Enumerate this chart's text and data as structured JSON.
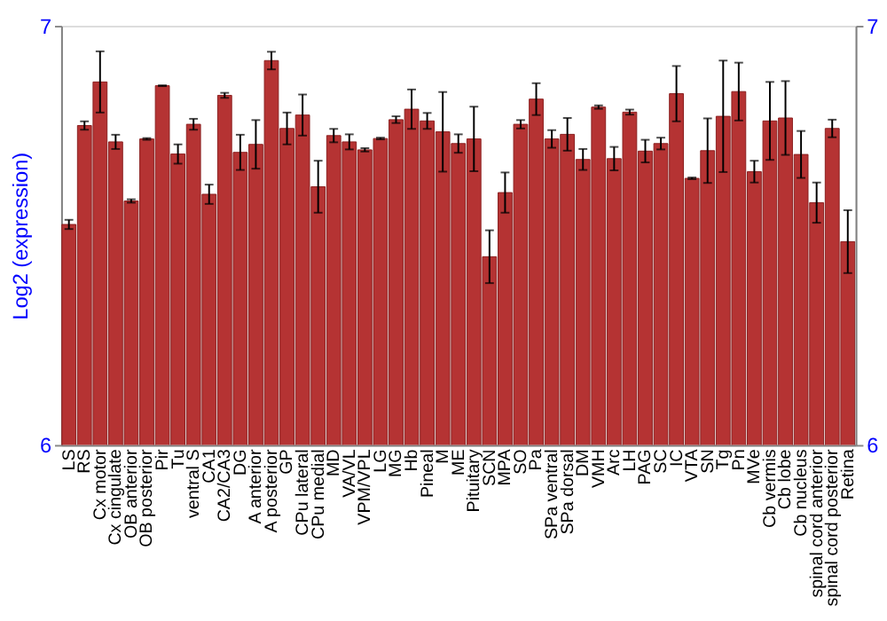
{
  "chart_data": {
    "type": "bar",
    "ylabel": "Log2 (expression)",
    "categories": [
      "LS",
      "RS",
      "Cx motor",
      "Cx cingulate",
      "OB anterior",
      "OB posterior",
      "Pir",
      "Tu",
      "ventral S",
      "CA1",
      "CA2/CA3",
      "DG",
      "A anterior",
      "A posterior",
      "GP",
      "CPu lateral",
      "CPu medial",
      "MD",
      "VA/VL",
      "VPM/VPL",
      "LG",
      "MG",
      "Hb",
      "Pineal",
      "M",
      "ME",
      "Pituitary",
      "SCN",
      "MPA",
      "SO",
      "Pa",
      "SPa ventral",
      "SPa dorsal",
      "DM",
      "VMH",
      "Arc",
      "LH",
      "PAG",
      "SC",
      "IC",
      "VTA",
      "SN",
      "Tg",
      "Pn",
      "MVe",
      "Cb vermis",
      "Cb lobe",
      "Cb nucleus",
      "spinal cord anterior",
      "spinal cord posterior",
      "Retina"
    ],
    "values": [
      6.526,
      6.762,
      6.866,
      6.723,
      6.582,
      6.73,
      6.857,
      6.694,
      6.765,
      6.598,
      6.834,
      6.698,
      6.717,
      6.917,
      6.755,
      6.787,
      6.616,
      6.738,
      6.723,
      6.704,
      6.731,
      6.776,
      6.801,
      6.773,
      6.747,
      6.719,
      6.73,
      6.449,
      6.602,
      6.765,
      6.825,
      6.73,
      6.741,
      6.681,
      6.806,
      6.683,
      6.794,
      6.701,
      6.719,
      6.838,
      6.636,
      6.702,
      6.784,
      6.843,
      6.652,
      6.773,
      6.78,
      6.693,
      6.578,
      6.755,
      6.485
    ],
    "errors": [
      0.011,
      0.01,
      0.073,
      0.017,
      0.004,
      0.002,
      0.001,
      0.023,
      0.013,
      0.023,
      0.006,
      0.042,
      0.058,
      0.021,
      0.038,
      0.049,
      0.062,
      0.016,
      0.018,
      0.004,
      0.002,
      0.008,
      0.047,
      0.019,
      0.095,
      0.022,
      0.077,
      0.063,
      0.048,
      0.01,
      0.038,
      0.021,
      0.039,
      0.025,
      0.004,
      0.028,
      0.006,
      0.027,
      0.014,
      0.066,
      0.002,
      0.077,
      0.133,
      0.069,
      0.026,
      0.093,
      0.088,
      0.056,
      0.048,
      0.021,
      0.075
    ],
    "color": "#b53333",
    "ylim": [
      6,
      7
    ],
    "yticks": [
      6,
      7
    ],
    "y2lim": [
      6,
      7
    ],
    "y2ticks": [
      6,
      7
    ],
    "grid": false
  }
}
